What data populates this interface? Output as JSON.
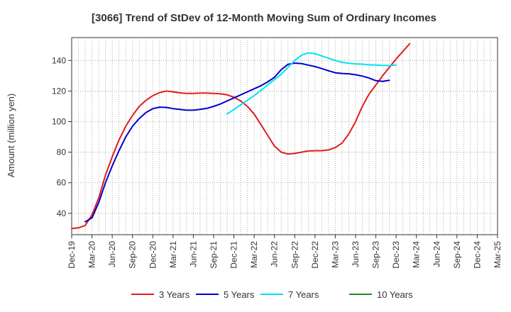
{
  "chart_data": {
    "type": "line",
    "title": "[3066]  Trend of StDev of 12-Month Moving Sum of Ordinary Incomes",
    "ylabel": "Amount (million yen)",
    "xlabel": "",
    "x_ticks": [
      "Dec-19",
      "Mar-20",
      "Jun-20",
      "Sep-20",
      "Dec-20",
      "Mar-21",
      "Jun-21",
      "Sep-21",
      "Dec-21",
      "Mar-22",
      "Jun-22",
      "Sep-22",
      "Dec-22",
      "Mar-23",
      "Jun-23",
      "Sep-23",
      "Dec-23",
      "Mar-24",
      "Jun-24",
      "Sep-24",
      "Dec-24",
      "Mar-25"
    ],
    "y_ticks": [
      40,
      60,
      80,
      100,
      120,
      140
    ],
    "ylim": [
      26,
      155
    ],
    "grid": true,
    "legend_position": "bottom",
    "series": [
      {
        "name": "3 Years",
        "color": "#e41a1c",
        "points": [
          [
            0,
            30
          ],
          [
            1,
            30.5
          ],
          [
            2,
            32
          ],
          [
            3,
            39
          ],
          [
            4,
            50
          ],
          [
            5,
            65
          ],
          [
            6,
            77
          ],
          [
            7,
            88
          ],
          [
            8,
            97
          ],
          [
            9,
            104
          ],
          [
            10,
            110
          ],
          [
            11,
            114
          ],
          [
            12,
            117
          ],
          [
            13,
            119
          ],
          [
            14,
            120
          ],
          [
            15,
            119.5
          ],
          [
            16,
            118.8
          ],
          [
            17,
            118.5
          ],
          [
            18,
            118.5
          ],
          [
            19,
            118.7
          ],
          [
            20,
            118.7
          ],
          [
            21,
            118.5
          ],
          [
            22,
            118.2
          ],
          [
            23,
            117.5
          ],
          [
            24,
            116
          ],
          [
            25,
            113.5
          ],
          [
            26,
            110
          ],
          [
            27,
            105
          ],
          [
            28,
            98
          ],
          [
            29,
            91
          ],
          [
            30,
            84
          ],
          [
            31,
            80
          ],
          [
            32,
            78.8
          ],
          [
            33,
            79.2
          ],
          [
            34,
            80
          ],
          [
            35,
            80.8
          ],
          [
            36,
            81
          ],
          [
            37,
            81
          ],
          [
            38,
            81.5
          ],
          [
            39,
            83
          ],
          [
            40,
            86
          ],
          [
            41,
            92
          ],
          [
            42,
            100
          ],
          [
            43,
            110
          ],
          [
            44,
            118
          ],
          [
            45,
            124
          ],
          [
            46,
            130
          ],
          [
            47,
            135.5
          ],
          [
            48,
            141
          ],
          [
            49,
            146
          ],
          [
            50,
            151
          ]
        ]
      },
      {
        "name": "5 Years",
        "color": "#0000cc",
        "points": [
          [
            2,
            34.5
          ],
          [
            3,
            37
          ],
          [
            4,
            47
          ],
          [
            5,
            60
          ],
          [
            6,
            71
          ],
          [
            7,
            81
          ],
          [
            8,
            90
          ],
          [
            9,
            97
          ],
          [
            10,
            102
          ],
          [
            11,
            106
          ],
          [
            12,
            108.5
          ],
          [
            13,
            109.5
          ],
          [
            14,
            109.3
          ],
          [
            15,
            108.5
          ],
          [
            16,
            108
          ],
          [
            17,
            107.5
          ],
          [
            18,
            107.5
          ],
          [
            19,
            108
          ],
          [
            20,
            108.7
          ],
          [
            21,
            110
          ],
          [
            22,
            111.5
          ],
          [
            23,
            113.5
          ],
          [
            24,
            115.5
          ],
          [
            25,
            117.5
          ],
          [
            26,
            119.5
          ],
          [
            27,
            121.5
          ],
          [
            28,
            123.5
          ],
          [
            29,
            126
          ],
          [
            30,
            129
          ],
          [
            31,
            134
          ],
          [
            32,
            137.5
          ],
          [
            33,
            138.3
          ],
          [
            34,
            138
          ],
          [
            35,
            137
          ],
          [
            36,
            136
          ],
          [
            37,
            134.7
          ],
          [
            38,
            133.3
          ],
          [
            39,
            132
          ],
          [
            40,
            131.5
          ],
          [
            41,
            131.3
          ],
          [
            42,
            130.7
          ],
          [
            43,
            129.8
          ],
          [
            44,
            128.5
          ],
          [
            45,
            126.8
          ],
          [
            46,
            126.3
          ],
          [
            47,
            127
          ]
        ]
      },
      {
        "name": "7 Years",
        "color": "#00e5ee",
        "points": [
          [
            23,
            105
          ],
          [
            24,
            108
          ],
          [
            25,
            111
          ],
          [
            26,
            114
          ],
          [
            27,
            117
          ],
          [
            28,
            120.5
          ],
          [
            29,
            124
          ],
          [
            30,
            127.5
          ],
          [
            31,
            131
          ],
          [
            32,
            135.5
          ],
          [
            33,
            140
          ],
          [
            34,
            143.5
          ],
          [
            35,
            145
          ],
          [
            36,
            144.5
          ],
          [
            37,
            143
          ],
          [
            38,
            141.5
          ],
          [
            39,
            140
          ],
          [
            40,
            138.8
          ],
          [
            41,
            138.2
          ],
          [
            42,
            137.8
          ],
          [
            43,
            137.6
          ],
          [
            44,
            137.2
          ],
          [
            45,
            137
          ],
          [
            46,
            136.8
          ],
          [
            47,
            136.7
          ],
          [
            48,
            137
          ]
        ]
      },
      {
        "name": "10 Years",
        "color": "#228b22",
        "points": []
      }
    ]
  }
}
